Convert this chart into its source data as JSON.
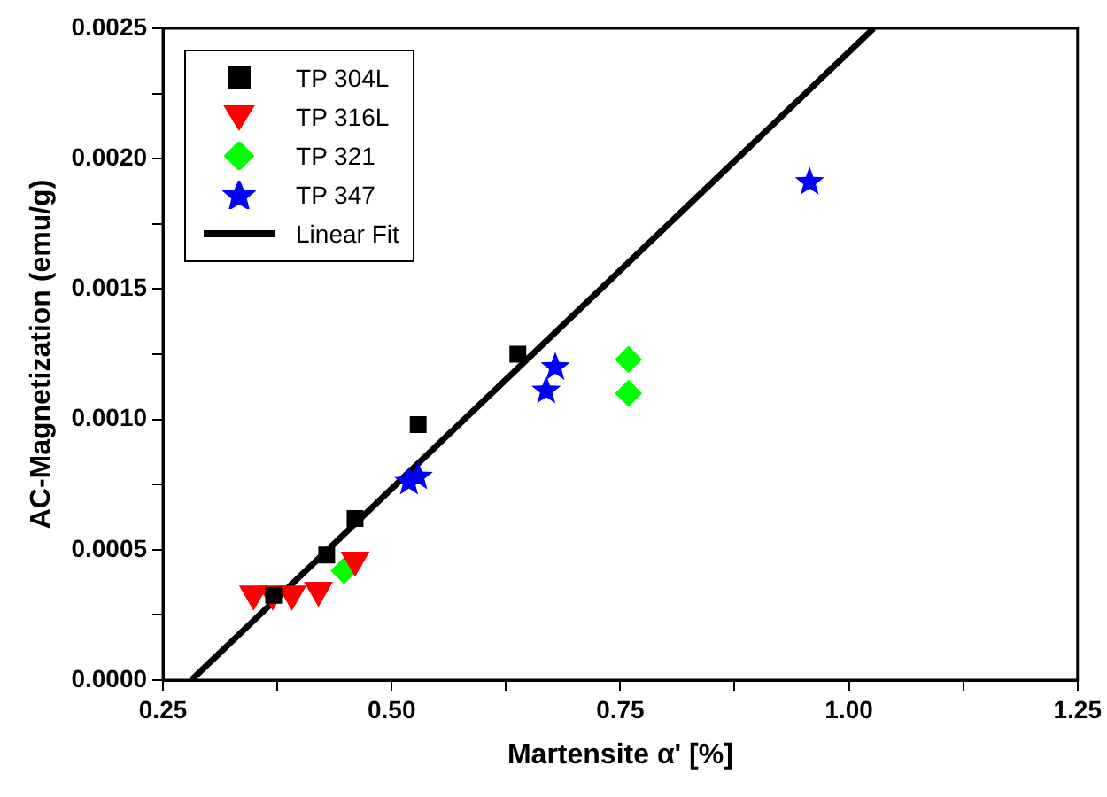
{
  "chart_data": {
    "type": "scatter",
    "xlabel": "Martensite α' [%]",
    "ylabel": "AC-Magnetization (emu/g)",
    "xlim": [
      0.25,
      1.25
    ],
    "ylim": [
      0,
      0.0025
    ],
    "xticks": [
      {
        "value": 0.25,
        "label": "0.25"
      },
      {
        "value": 0.375,
        "label": null
      },
      {
        "value": 0.5,
        "label": "0.50"
      },
      {
        "value": 0.625,
        "label": null
      },
      {
        "value": 0.75,
        "label": "0.75"
      },
      {
        "value": 0.875,
        "label": null
      },
      {
        "value": 1,
        "label": "1.00"
      },
      {
        "value": 1.125,
        "label": null
      },
      {
        "value": 1.25,
        "label": "1.25"
      }
    ],
    "yticks": [
      {
        "value": 0,
        "label": "0.0000"
      },
      {
        "value": 0.00025,
        "label": null
      },
      {
        "value": 0.0005,
        "label": "0.0005"
      },
      {
        "value": 0.00075,
        "label": null
      },
      {
        "value": 0.001,
        "label": "0.0010"
      },
      {
        "value": 0.00125,
        "label": null
      },
      {
        "value": 0.0015,
        "label": "0.0015"
      },
      {
        "value": 0.00175,
        "label": null
      },
      {
        "value": 0.002,
        "label": "0.0020"
      },
      {
        "value": 0.00225,
        "label": null
      },
      {
        "value": 0.0025,
        "label": "0.0025"
      }
    ],
    "grid": false,
    "legend": "top left",
    "series": [
      {
        "name": "TP 304L",
        "color": "#000000",
        "marker": "square",
        "x": [
          0.371,
          0.429,
          0.46,
          0.529,
          0.638
        ],
        "values": [
          0.000325,
          0.00048,
          0.00062,
          0.00098,
          0.00125
        ]
      },
      {
        "name": "TP 316L",
        "color": "#ff0000",
        "marker": "triangle",
        "x": [
          0.349,
          0.37,
          0.391,
          0.42,
          0.46
        ],
        "values": [
          0.00033,
          0.00033,
          0.00033,
          0.000345,
          0.00046
        ]
      },
      {
        "name": "TP 321",
        "color": "#00ff00",
        "marker": "diamond",
        "x": [
          0.448,
          0.759,
          0.759
        ],
        "values": [
          0.00042,
          0.00123,
          0.0011
        ]
      },
      {
        "name": "TP 347",
        "color": "#0000ff",
        "marker": "star",
        "x": [
          0.519,
          0.529,
          0.669,
          0.679,
          0.957
        ],
        "values": [
          0.00076,
          0.00078,
          0.00111,
          0.0012,
          0.00191
        ]
      },
      {
        "name": "Linear Fit",
        "type": "line",
        "color": "#000000",
        "marker": "none",
        "line_style": "solid",
        "x": [
          0.281,
          1.027
        ],
        "values": [
          0,
          0.0025
        ]
      }
    ]
  }
}
